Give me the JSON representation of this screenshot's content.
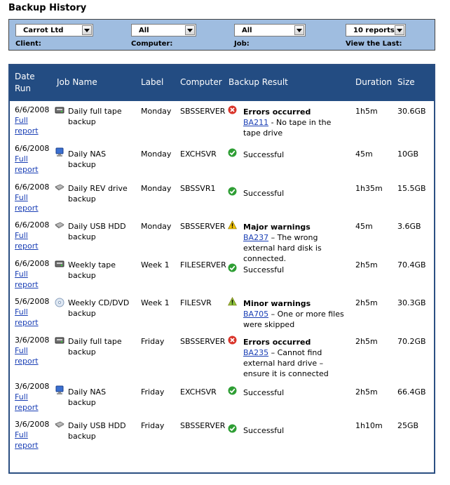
{
  "title": "Backup  History",
  "filters": [
    {
      "id": "client",
      "label": "Client:",
      "value": "Carrot Ltd"
    },
    {
      "id": "computer",
      "label": "Computer:",
      "value": "All"
    },
    {
      "id": "job",
      "label": "Job:",
      "value": "All"
    },
    {
      "id": "view",
      "label": "View the Last:",
      "value": "10 reports"
    }
  ],
  "columns": [
    "Date Run",
    "Job Name",
    "Label",
    "Computer",
    "Backup Result",
    "Duration",
    "Size"
  ],
  "link_label": "Full report",
  "rows": [
    {
      "date": "6/6/2008",
      "job": "Daily full tape backup",
      "job_icon": "tape-drive-icon",
      "label": "Monday",
      "computer": "SBSSERVER",
      "status": "error",
      "result": "Errors occurred",
      "code": "BA211",
      "detail": " - No tape in the tape drive",
      "duration": "1h5m",
      "size": "30.6GB"
    },
    {
      "date": "6/6/2008",
      "job": "Daily NAS backup",
      "job_icon": "nas-icon",
      "label": "Monday",
      "computer": "EXCHSVR",
      "status": "success",
      "result": "Successful",
      "code": "",
      "detail": "",
      "duration": "45m",
      "size": "10GB"
    },
    {
      "date": "6/6/2008",
      "job": "Daily REV drive backup",
      "job_icon": "rev-drive-icon",
      "label": "Monday",
      "computer": "SBSSVR1",
      "status": "success",
      "result": "Successful",
      "code": "",
      "detail": "",
      "duration": "1h35m",
      "size": "15.5GB"
    },
    {
      "date": "6/6/2008",
      "job": "Daily USB HDD backup",
      "job_icon": "usb-hdd-icon",
      "label": "Monday",
      "computer": "SBSSERVER",
      "status": "major",
      "result": "Major warnings",
      "code": "BA237",
      "detail": " – The wrong external hard disk is connected.",
      "duration": "45m",
      "size": "3.6GB"
    },
    {
      "date": "6/6/2008",
      "job": "Weekly tape backup",
      "job_icon": "tape-drive-icon",
      "label": "Week 1",
      "computer": "FILESERVER",
      "status": "success",
      "result": "Successful",
      "code": "",
      "detail": "",
      "duration": "2h5m",
      "size": "70.4GB"
    },
    {
      "date": "5/6/2008",
      "job": "Weekly CD/DVD backup",
      "job_icon": "cd-dvd-icon",
      "label": "Week 1",
      "computer": "FILESVR",
      "status": "minor",
      "result": "Minor warnings",
      "code": "BA705",
      "detail": " – One or more files were skipped",
      "duration": "2h5m",
      "size": "30.3GB"
    },
    {
      "date": "3/6/2008",
      "job": "Daily full tape backup",
      "job_icon": "tape-drive-icon",
      "label": "Friday",
      "computer": "SBSSERVER",
      "status": "error",
      "result": "Errors occurred",
      "code": "BA235",
      "detail": " – Cannot find external hard drive – ensure it is connected",
      "duration": "2h5m",
      "size": "70.2GB"
    },
    {
      "date": "3/6/2008",
      "job": "Daily NAS backup",
      "job_icon": "nas-icon",
      "label": "Friday",
      "computer": "EXCHSVR",
      "status": "success",
      "result": "Successful",
      "code": "",
      "detail": "",
      "duration": "2h5m",
      "size": "66.4GB"
    },
    {
      "date": "3/6/2008",
      "job": "Daily USB HDD backup",
      "job_icon": "usb-hdd-icon",
      "label": "Friday",
      "computer": "SBSSERVER",
      "status": "success",
      "result": "Successful",
      "code": "",
      "detail": "",
      "duration": "1h10m",
      "size": "25GB"
    }
  ],
  "colors": {
    "header_bg": "#234c82",
    "filter_bg": "#9fbde0",
    "link": "#1a3fb5",
    "success": "#2e9e34",
    "error": "#d9342a",
    "warning": "#f2c200",
    "minor": "#8cc63f"
  }
}
